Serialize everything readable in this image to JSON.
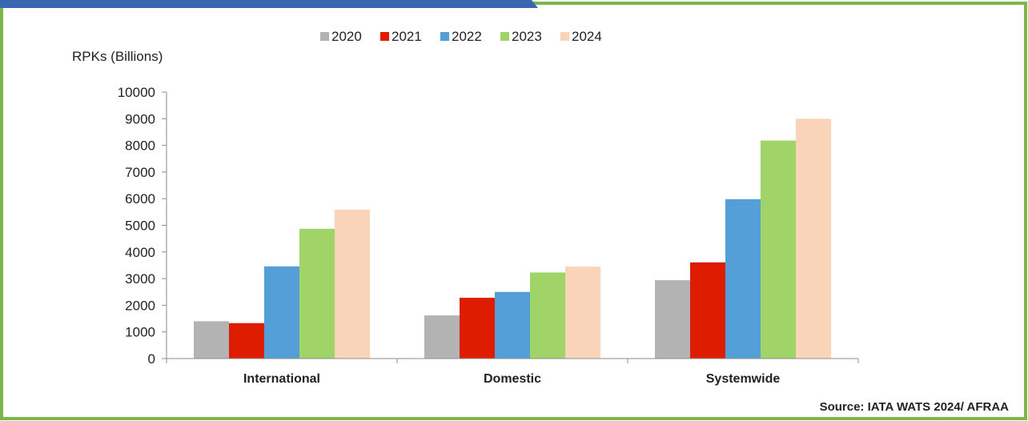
{
  "colors": {
    "frame_border": "#7ab648",
    "header_bar": "#3b67b1"
  },
  "source": "Source: IATA WATS 2024/ AFRAA",
  "chart_data": {
    "type": "bar",
    "ylabel": "RPKs (Billions)",
    "xlabel": "",
    "title": "",
    "ylim": [
      0,
      10000
    ],
    "yticks": [
      0,
      1000,
      2000,
      3000,
      4000,
      5000,
      6000,
      7000,
      8000,
      9000,
      10000
    ],
    "categories": [
      "International",
      "Domestic",
      "Systemwide"
    ],
    "legend_position": "top",
    "grid": false,
    "series": [
      {
        "name": "2020",
        "color": "#b3b3b3",
        "values": [
          1400,
          1620,
          2940
        ]
      },
      {
        "name": "2021",
        "color": "#dd1c00",
        "values": [
          1330,
          2280,
          3610
        ]
      },
      {
        "name": "2022",
        "color": "#559fd9",
        "values": [
          3460,
          2500,
          5980
        ]
      },
      {
        "name": "2023",
        "color": "#a0d468",
        "values": [
          4870,
          3230,
          8180
        ]
      },
      {
        "name": "2024",
        "color": "#f9d4b9",
        "values": [
          5590,
          3450,
          9000
        ]
      }
    ]
  }
}
